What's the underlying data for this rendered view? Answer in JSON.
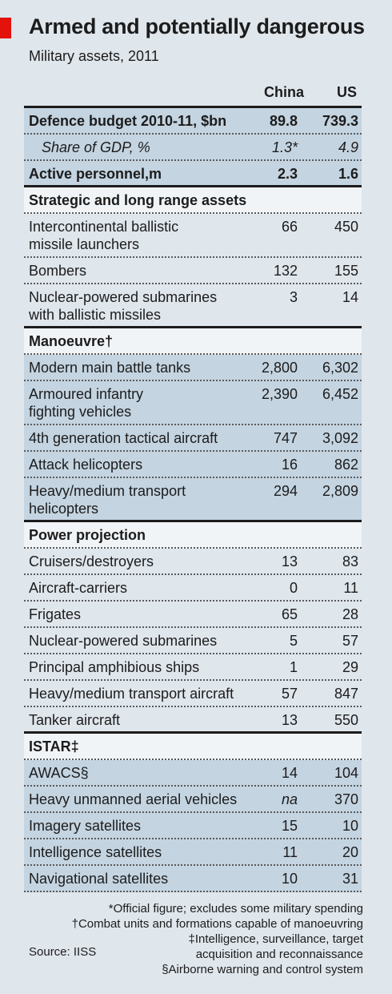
{
  "title": "Armed and potentially dangerous",
  "subtitle": "Military assets, 2011",
  "chart_data": {
    "type": "table",
    "columns": [
      "China",
      "US"
    ],
    "rows": [
      {
        "label": "Defence budget 2010-11, $bn",
        "china": "89.8",
        "us": "739.3",
        "style": "bold-shaded"
      },
      {
        "label": "Share of GDP, %",
        "china": "1.3*",
        "us": "4.9",
        "style": "italic-shaded"
      },
      {
        "label": "Active personnel,m",
        "china": "2.3",
        "us": "1.6",
        "style": "bold-shaded"
      },
      {
        "label": "Strategic and long range assets",
        "style": "section"
      },
      {
        "label": "Intercontinental ballistic",
        "label2": "missile launchers",
        "china": "66",
        "us": "450",
        "style": "normal"
      },
      {
        "label": "Bombers",
        "china": "132",
        "us": "155",
        "style": "normal"
      },
      {
        "label": "Nuclear-powered submarines",
        "label2": "with ballistic missiles",
        "china": "3",
        "us": "14",
        "style": "normal"
      },
      {
        "label": "Manoeuvre†",
        "style": "section-shaded"
      },
      {
        "label": "Modern main battle tanks",
        "china": "2,800",
        "us": "6,302",
        "style": "shaded"
      },
      {
        "label": "Armoured infantry",
        "label2": "fighting vehicles",
        "china": "2,390",
        "us": "6,452",
        "style": "shaded"
      },
      {
        "label": "4th generation tactical aircraft",
        "china": "747",
        "us": "3,092",
        "style": "shaded"
      },
      {
        "label": "Attack helicopters",
        "china": "16",
        "us": "862",
        "style": "shaded"
      },
      {
        "label": "Heavy/medium transport",
        "label2": "helicopters",
        "china": "294",
        "us": "2,809",
        "style": "shaded"
      },
      {
        "label": "Power projection",
        "style": "section"
      },
      {
        "label": "Cruisers/destroyers",
        "china": "13",
        "us": "83",
        "style": "normal"
      },
      {
        "label": "Aircraft-carriers",
        "china": "0",
        "us": "11",
        "style": "normal"
      },
      {
        "label": "Frigates",
        "china": "65",
        "us": "28",
        "style": "normal"
      },
      {
        "label": "Nuclear-powered submarines",
        "china": "5",
        "us": "57",
        "style": "normal"
      },
      {
        "label": "Principal amphibious ships",
        "china": "1",
        "us": "29",
        "style": "normal"
      },
      {
        "label": "Heavy/medium transport aircraft",
        "china": "57",
        "us": "847",
        "style": "normal"
      },
      {
        "label": "Tanker aircraft",
        "china": "13",
        "us": "550",
        "style": "normal"
      },
      {
        "label": "ISTAR‡",
        "style": "section-shaded"
      },
      {
        "label": "AWACS§",
        "china": "14",
        "us": "104",
        "style": "shaded"
      },
      {
        "label": "Heavy unmanned aerial vehicles",
        "china": "na",
        "us": "370",
        "style": "shaded"
      },
      {
        "label": "Imagery satellites",
        "china": "15",
        "us": "10",
        "style": "shaded"
      },
      {
        "label": "Intelligence satellites",
        "china": "11",
        "us": "20",
        "style": "shaded"
      },
      {
        "label": "Navigational satellites",
        "china": "10",
        "us": "31",
        "style": "shaded"
      }
    ]
  },
  "footnotes": [
    "*Official figure; excludes some military spending",
    "†Combat units and formations capable of manoeuvring",
    "‡Intelligence, surveillance, target",
    "acquisition and reconnaissance",
    "§Airborne warning and control system"
  ],
  "source": "Source: IISS",
  "colors": {
    "accent": "#e3120b",
    "shaded": "#c4d4e1",
    "section": "#f1f4f7",
    "background": "#dfe6ec"
  }
}
